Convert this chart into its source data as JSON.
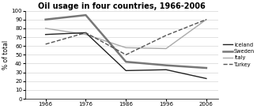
{
  "title": "Oil usage in four countries, 1966-2006",
  "ylabel": "% of total",
  "years": [
    1966,
    1976,
    1986,
    1996,
    2006
  ],
  "series": {
    "Iceland": {
      "values": [
        73,
        75,
        32,
        33,
        23
      ],
      "color": "#222222",
      "linestyle": "-",
      "linewidth": 1.0,
      "zorder": 4
    },
    "Sweden": {
      "values": [
        90,
        95,
        42,
        38,
        35
      ],
      "color": "#777777",
      "linestyle": "-",
      "linewidth": 1.8,
      "zorder": 3
    },
    "Italy": {
      "values": [
        80,
        73,
        58,
        57,
        90
      ],
      "color": "#aaaaaa",
      "linestyle": "-",
      "linewidth": 1.0,
      "zorder": 2
    },
    "Turkey": {
      "values": [
        62,
        75,
        50,
        72,
        90
      ],
      "color": "#555555",
      "linestyle": "--",
      "linewidth": 1.0,
      "zorder": 5
    }
  },
  "xlim": [
    1961,
    2009
  ],
  "ylim": [
    0,
    100
  ],
  "yticks": [
    0,
    10,
    20,
    30,
    40,
    50,
    60,
    70,
    80,
    90,
    100
  ],
  "xticks": [
    1966,
    1976,
    1986,
    1996,
    2006
  ],
  "legend_fontsize": 4.8,
  "tick_fontsize": 5.0,
  "title_fontsize": 7.0,
  "ylabel_fontsize": 5.5
}
